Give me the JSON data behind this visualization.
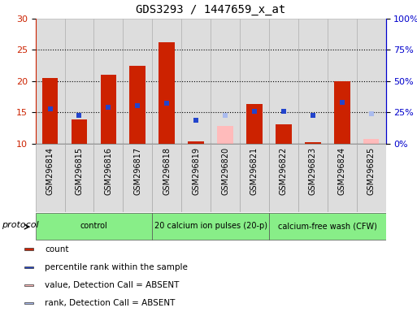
{
  "title": "GDS3293 / 1447659_x_at",
  "samples": [
    "GSM296814",
    "GSM296815",
    "GSM296816",
    "GSM296817",
    "GSM296818",
    "GSM296819",
    "GSM296820",
    "GSM296821",
    "GSM296822",
    "GSM296823",
    "GSM296824",
    "GSM296825"
  ],
  "red_bars": [
    20.5,
    13.9,
    21.0,
    22.5,
    26.2,
    10.3,
    null,
    16.3,
    13.1,
    10.2,
    20.0,
    null
  ],
  "pink_bars": [
    null,
    null,
    null,
    null,
    null,
    null,
    12.8,
    null,
    null,
    null,
    null,
    10.7
  ],
  "blue_squares": [
    15.5,
    14.5,
    15.8,
    16.1,
    16.4,
    13.7,
    null,
    15.2,
    15.2,
    14.5,
    16.6,
    null
  ],
  "lightblue_squares": [
    null,
    null,
    null,
    null,
    null,
    null,
    14.5,
    null,
    null,
    null,
    null,
    14.8
  ],
  "ymin": 10,
  "ymax": 30,
  "yticks_left": [
    10,
    15,
    20,
    25,
    30
  ],
  "yticks_right_vals": [
    0,
    25,
    50,
    75,
    100
  ],
  "bar_width": 0.55,
  "blue_sq_size": 30,
  "bg_color": "#ffffff",
  "left_axis_color": "#cc2200",
  "right_axis_color": "#0000cc",
  "bar_color": "#cc2200",
  "pink_color": "#ffbbbb",
  "blue_color": "#2244cc",
  "lightblue_color": "#aabbee",
  "gray_band_color": "#dddddd",
  "gray_band_edge": "#aaaaaa",
  "green_color": "#88ee88",
  "protocol_groups": [
    {
      "label": "control",
      "start": 0,
      "end": 4
    },
    {
      "label": "20 calcium ion pulses (20-p)",
      "start": 4,
      "end": 8
    },
    {
      "label": "calcium-free wash (CFW)",
      "start": 8,
      "end": 12
    }
  ],
  "legend_items": [
    {
      "label": "count",
      "color": "#cc2200"
    },
    {
      "label": "percentile rank within the sample",
      "color": "#2244cc"
    },
    {
      "label": "value, Detection Call = ABSENT",
      "color": "#ffbbbb"
    },
    {
      "label": "rank, Detection Call = ABSENT",
      "color": "#aabbee"
    }
  ]
}
